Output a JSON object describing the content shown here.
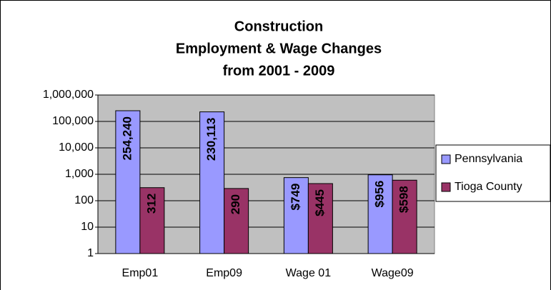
{
  "chart_data": {
    "type": "bar",
    "title": [
      "Construction",
      "Employment & Wage Changes",
      "from 2001 - 2009"
    ],
    "categories": [
      "Emp01",
      "Emp09",
      "Wage 01",
      "Wage09"
    ],
    "series": [
      {
        "name": "Pennsylvania",
        "color": "#9999ff",
        "values": [
          254240,
          230113,
          749,
          956
        ],
        "value_labels": [
          "254,240",
          "230,113",
          "$749",
          "$956"
        ]
      },
      {
        "name": "Tioga County",
        "color": "#993366",
        "values": [
          312,
          290,
          445,
          598
        ],
        "value_labels": [
          "312",
          "290",
          "$445",
          "$598"
        ]
      }
    ],
    "ylim": [
      1,
      1000000
    ],
    "yticks": [
      1,
      10,
      100,
      {
        "value": 1000,
        "label": "1,000"
      },
      {
        "value": 10000,
        "label": "10,000"
      },
      {
        "value": 100000,
        "label": "100,000"
      },
      {
        "value": 1000000,
        "label": "1,000,000"
      }
    ],
    "log_scale": true,
    "grid": true,
    "legend": "right",
    "plot_background": "#c0c0c0"
  }
}
